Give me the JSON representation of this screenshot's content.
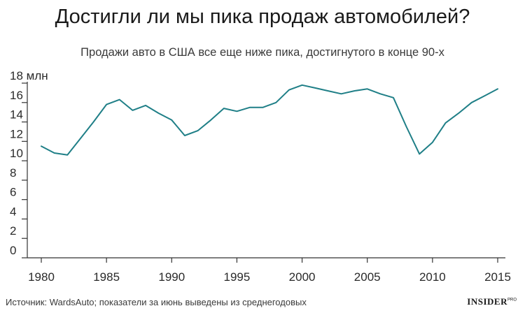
{
  "header": {
    "title": "Достигли ли мы пика продаж автомобилей?",
    "subtitle": "Продажи авто в США все еще ниже пика, достигнутого в конце 90-х"
  },
  "footer": {
    "source": "Источник: WardsAuto; показатели за июнь выведены из среднегодовых",
    "brand_main": "INSIDER",
    "brand_sup": "PRO"
  },
  "colors": {
    "line": "#1f7f87",
    "axis": "#333333"
  },
  "chart_data": {
    "type": "line",
    "title": "",
    "xlabel": "",
    "ylabel": "",
    "y_unit": "млн",
    "xlim": [
      1980,
      2015
    ],
    "ylim": [
      0,
      18
    ],
    "y_ticks": [
      0,
      2,
      4,
      6,
      8,
      10,
      12,
      14,
      16,
      18
    ],
    "y_tick_labels": [
      "0",
      "2",
      "4",
      "6",
      "8",
      "10",
      "12",
      "14",
      "16",
      "18 млн"
    ],
    "x_ticks": [
      1980,
      1985,
      1990,
      1995,
      2000,
      2005,
      2010,
      2015
    ],
    "x_tick_labels": [
      "1980",
      "1985",
      "1990",
      "1995",
      "2000",
      "2005",
      "2010",
      "2015"
    ],
    "grid": false,
    "series": [
      {
        "x": [
          1980,
          1981,
          1982,
          1983,
          1984,
          1985,
          1986,
          1987,
          1988,
          1989,
          1990,
          1991,
          1992,
          1993,
          1994,
          1995,
          1996,
          1997,
          1998,
          1999,
          2000,
          2001,
          2002,
          2003,
          2004,
          2005,
          2006,
          2007,
          2008,
          2009,
          2010,
          2011,
          2012,
          2013,
          2014,
          2015
        ],
        "values": [
          11.5,
          10.8,
          10.6,
          12.3,
          14.0,
          15.8,
          16.3,
          15.2,
          15.7,
          14.9,
          14.2,
          12.6,
          13.1,
          14.2,
          15.4,
          15.1,
          15.5,
          15.5,
          16.0,
          17.3,
          17.8,
          17.5,
          17.2,
          16.9,
          17.2,
          17.4,
          16.9,
          16.5,
          13.5,
          10.7,
          11.9,
          13.9,
          14.9,
          16.0,
          16.7,
          17.4
        ]
      }
    ]
  }
}
